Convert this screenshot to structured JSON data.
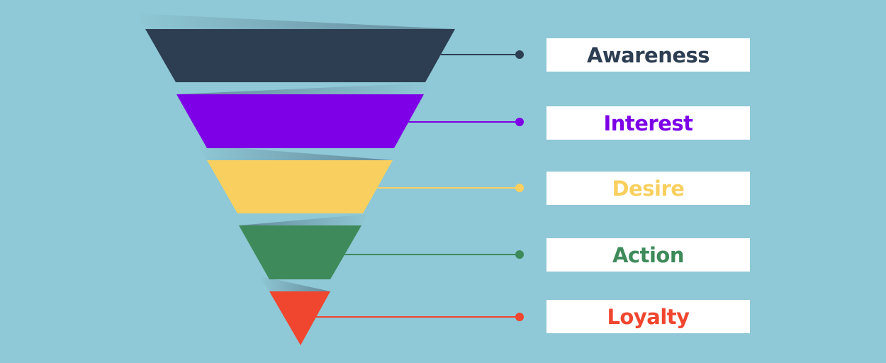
{
  "stages": [
    {
      "label": "Awareness",
      "color": "#2d3e52"
    },
    {
      "label": "Interest",
      "color": "#7d00e6"
    },
    {
      "label": "Desire",
      "color": "#f9d05f"
    },
    {
      "label": "Action",
      "color": "#3e8a5a"
    },
    {
      "label": "Loyalty",
      "color": "#f0452e"
    }
  ],
  "background_color": "#8fc8d6"
}
